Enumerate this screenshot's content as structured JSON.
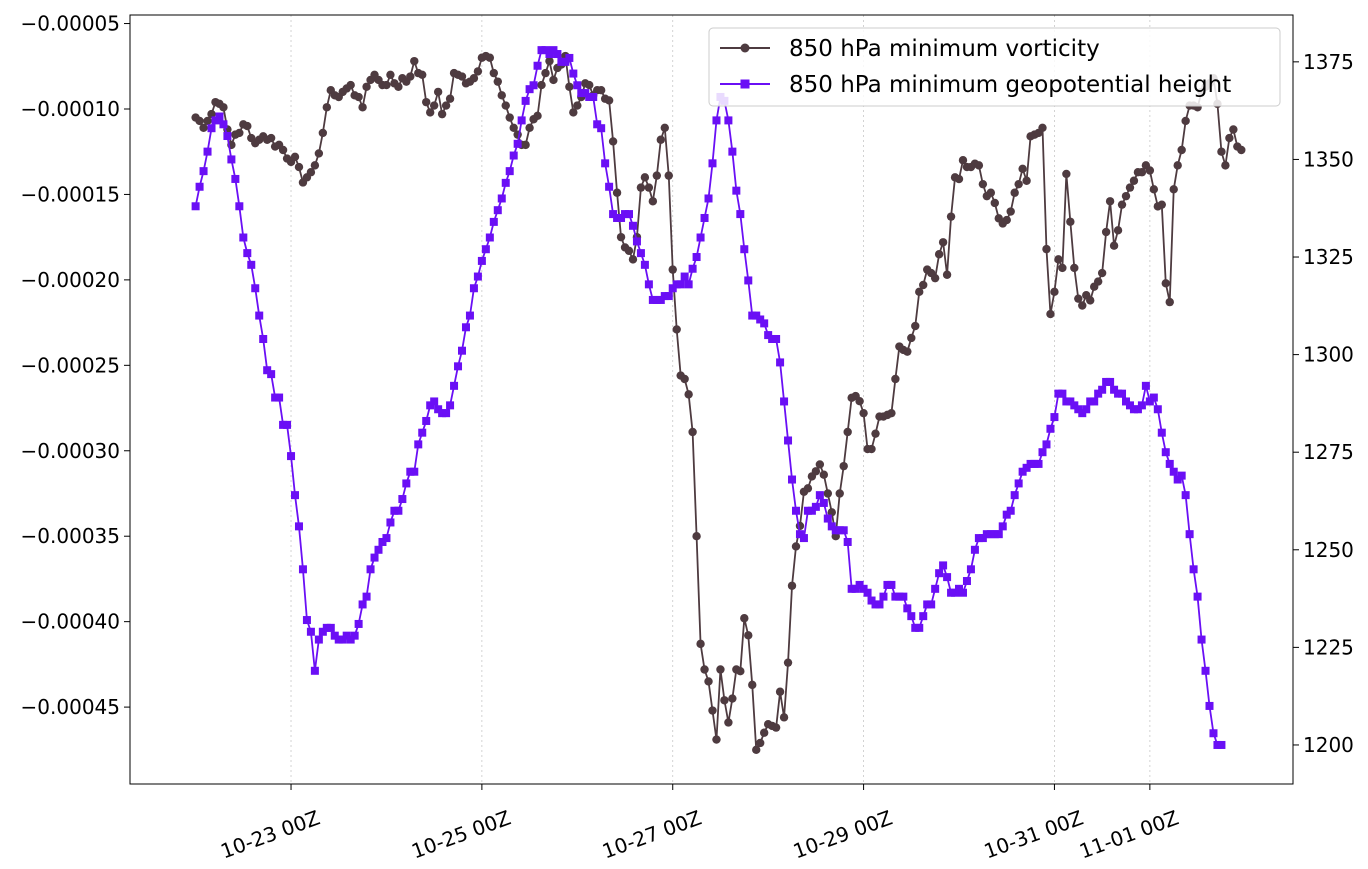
{
  "chart_data": {
    "type": "line",
    "x_unit": "UTC time",
    "x_ticks": [
      {
        "label": "10-23 00Z",
        "t": "2023-10-23T00:00Z"
      },
      {
        "label": "10-25 00Z",
        "t": "2023-10-25T00:00Z"
      },
      {
        "label": "10-27 00Z",
        "t": "2023-10-27T00:00Z"
      },
      {
        "label": "10-29 00Z",
        "t": "2023-10-29T00:00Z"
      },
      {
        "label": "10-31 00Z",
        "t": "2023-10-31T00:00Z"
      },
      {
        "label": "11-01 00Z",
        "t": "2023-11-01T00:00Z"
      }
    ],
    "xlim": [
      "2023-10-21T07:30Z",
      "2023-11-02T12:00Z"
    ],
    "grid": "vertical-dotted",
    "legend_position": "top-right",
    "y_left": {
      "lim": [
        -0.000495,
        -4.5e-05
      ],
      "ticks": [
        -5e-05,
        -0.0001,
        -0.00015,
        -0.0002,
        -0.00025,
        -0.0003,
        -0.00035,
        -0.0004,
        -0.00045
      ],
      "tick_labels": [
        "−0.00005",
        "−0.00010",
        "−0.00015",
        "−0.00020",
        "−0.00025",
        "−0.00030",
        "−0.00035",
        "−0.00040",
        "−0.00045"
      ]
    },
    "y_right": {
      "lim": [
        1190,
        1387
      ],
      "ticks": [
        1200,
        1225,
        1250,
        1275,
        1300,
        1325,
        1350,
        1375
      ],
      "tick_labels": [
        "1200",
        "1225",
        "1250",
        "1275",
        "1300",
        "1325",
        "1350",
        "1375"
      ]
    },
    "time_start": "2023-10-22T00:00Z",
    "time_step_hours": 1,
    "series": [
      {
        "name": "850 hPa minimum vorticity",
        "axis": "left",
        "color": "#4e3b40",
        "marker": "circle",
        "values": [
          -0.000105,
          -0.000107,
          -0.000111,
          -0.000107,
          -0.000103,
          -9.6e-05,
          -9.7e-05,
          -9.9e-05,
          -0.000112,
          -0.000121,
          -0.000115,
          -0.000114,
          -0.000109,
          -0.00011,
          -0.000117,
          -0.00012,
          -0.000118,
          -0.000116,
          -0.000118,
          -0.000117,
          -0.000122,
          -0.000121,
          -0.000124,
          -0.000129,
          -0.000131,
          -0.000128,
          -0.000134,
          -0.000143,
          -0.00014,
          -0.000137,
          -0.000133,
          -0.000126,
          -0.000114,
          -9.9e-05,
          -8.9e-05,
          -9.2e-05,
          -9.3e-05,
          -9e-05,
          -8.8e-05,
          -8.6e-05,
          -9.2e-05,
          -9.3e-05,
          -9.9e-05,
          -8.7e-05,
          -8.3e-05,
          -8e-05,
          -8.3e-05,
          -8.6e-05,
          -8.6e-05,
          -8e-05,
          -8.5e-05,
          -8.7e-05,
          -8.2e-05,
          -8.4e-05,
          -8.1e-05,
          -7.2e-05,
          -7.9e-05,
          -8e-05,
          -9.6e-05,
          -0.000102,
          -9.8e-05,
          -9e-05,
          -0.000103,
          -9.8e-05,
          -9.4e-05,
          -7.9e-05,
          -8e-05,
          -8.1e-05,
          -8.5e-05,
          -8.4e-05,
          -8.2e-05,
          -7.8e-05,
          -7e-05,
          -6.9e-05,
          -7e-05,
          -7.9e-05,
          -8.4e-05,
          -9.2e-05,
          -9.8e-05,
          -0.000105,
          -0.000111,
          -0.000115,
          -0.000121,
          -0.000121,
          -0.000111,
          -0.000106,
          -0.000104,
          -8.6e-05,
          -7.9e-05,
          -7.2e-05,
          -8.3e-05,
          -7.6e-05,
          -7.4e-05,
          -6.9e-05,
          -8.7e-05,
          -0.000102,
          -9.8e-05,
          -9.3e-05,
          -8.5e-05,
          -8.6e-05,
          -9.2e-05,
          -8.9e-05,
          -8.9e-05,
          -9.4e-05,
          -9.5e-05,
          -0.000119,
          -0.000149,
          -0.000175,
          -0.000181,
          -0.000183,
          -0.000188,
          -0.000175,
          -0.000146,
          -0.00014,
          -0.000146,
          -0.000154,
          -0.000139,
          -0.000118,
          -0.000111,
          -0.000139,
          -0.000194,
          -0.000229,
          -0.000256,
          -0.000258,
          -0.000267,
          -0.000289,
          -0.00035,
          -0.000413,
          -0.000428,
          -0.000435,
          -0.000452,
          -0.000469,
          -0.000428,
          -0.000446,
          -0.000459,
          -0.000445,
          -0.000428,
          -0.000429,
          -0.000398,
          -0.000408,
          -0.000437,
          -0.000475,
          -0.000471,
          -0.000465,
          -0.00046,
          -0.000461,
          -0.000462,
          -0.000441,
          -0.000456,
          -0.000424,
          -0.000379,
          -0.000356,
          -0.000344,
          -0.000324,
          -0.000322,
          -0.000315,
          -0.000312,
          -0.000308,
          -0.000314,
          -0.000325,
          -0.000336,
          -0.00035,
          -0.000325,
          -0.000309,
          -0.000289,
          -0.000269,
          -0.000268,
          -0.000271,
          -0.000278,
          -0.000299,
          -0.000299,
          -0.00029,
          -0.00028,
          -0.00028,
          -0.000279,
          -0.000278,
          -0.000258,
          -0.000239,
          -0.000241,
          -0.000242,
          -0.000234,
          -0.000227,
          -0.000207,
          -0.000203,
          -0.000194,
          -0.000196,
          -0.000199,
          -0.000185,
          -0.000178,
          -0.000197,
          -0.000163,
          -0.00014,
          -0.000141,
          -0.00013,
          -0.000134,
          -0.000134,
          -0.000132,
          -0.000133,
          -0.000144,
          -0.000151,
          -0.000149,
          -0.000155,
          -0.000164,
          -0.000167,
          -0.000165,
          -0.00016,
          -0.000149,
          -0.000144,
          -0.000135,
          -0.000142,
          -0.000116,
          -0.000115,
          -0.000114,
          -0.000111,
          -0.000182,
          -0.00022,
          -0.000207,
          -0.000188,
          -0.000193,
          -0.000138,
          -0.000166,
          -0.000193,
          -0.000211,
          -0.000215,
          -0.000209,
          -0.000212,
          -0.000204,
          -0.000201,
          -0.000196,
          -0.000172,
          -0.000154,
          -0.00018,
          -0.000171,
          -0.000156,
          -0.000151,
          -0.000146,
          -0.000142,
          -0.000137,
          -0.000137,
          -0.000133,
          -0.000136,
          -0.000147,
          -0.000157,
          -0.000156,
          -0.000202,
          -0.000213,
          -0.000147,
          -0.000133,
          -0.000124,
          -0.000107,
          -9.8e-05,
          -9.8e-05,
          -9.9e-05,
          -9e-05,
          -8.7e-05,
          -8.5e-05,
          -8.2e-05,
          -9.7e-05,
          -0.000125,
          -0.000133,
          -0.000117,
          -0.000112,
          -0.000122,
          -0.000124
        ]
      },
      {
        "name": "850 hPa minimum geopotential height",
        "axis": "right",
        "color": "#6a0ff5",
        "marker": "square",
        "values": [
          1338,
          1343,
          1347,
          1352,
          1358,
          1360,
          1361,
          1359,
          1356,
          1350,
          1345,
          1338,
          1330,
          1326,
          1323,
          1317,
          1310,
          1304,
          1296,
          1295,
          1289,
          1289,
          1282,
          1282,
          1274,
          1264,
          1256,
          1245,
          1232,
          1229,
          1219,
          1227,
          1229,
          1230,
          1230,
          1228,
          1227,
          1227,
          1228,
          1227,
          1228,
          1231,
          1236,
          1238,
          1245,
          1248,
          1250,
          1252,
          1253,
          1257,
          1260,
          1260,
          1263,
          1267,
          1270,
          1270,
          1277,
          1280,
          1283,
          1287,
          1288,
          1286,
          1285,
          1285,
          1287,
          1292,
          1297,
          1301,
          1307,
          1310,
          1317,
          1320,
          1324,
          1327,
          1330,
          1334,
          1337,
          1340,
          1344,
          1347,
          1351,
          1354,
          1360,
          1365,
          1368,
          1369,
          1374,
          1378,
          1378,
          1377,
          1378,
          1377,
          1375,
          1375,
          1376,
          1372,
          1369,
          1367,
          1367,
          1366,
          1366,
          1359,
          1358,
          1349,
          1343,
          1336,
          1335,
          1335,
          1336,
          1336,
          1333,
          1329,
          1326,
          1323,
          1318,
          1314,
          1314,
          1314,
          1315,
          1315,
          1317,
          1318,
          1318,
          1320,
          1318,
          1322,
          1325,
          1330,
          1335,
          1340,
          1349,
          1360,
          1366,
          1365,
          1360,
          1352,
          1342,
          1336,
          1327,
          1319,
          1310,
          1310,
          1309,
          1308,
          1305,
          1304,
          1304,
          1298,
          1288,
          1278,
          1268,
          1260,
          1254,
          1253,
          1260,
          1260,
          1261,
          1264,
          1262,
          1258,
          1256,
          1255,
          1255,
          1255,
          1252,
          1240,
          1240,
          1241,
          1240,
          1239,
          1237,
          1236,
          1236,
          1238,
          1241,
          1241,
          1238,
          1238,
          1238,
          1235,
          1233,
          1230,
          1230,
          1233,
          1236,
          1236,
          1240,
          1244,
          1246,
          1243,
          1239,
          1239,
          1240,
          1239,
          1242,
          1245,
          1250,
          1253,
          1253,
          1254,
          1254,
          1254,
          1254,
          1256,
          1259,
          1260,
          1264,
          1267,
          1270,
          1271,
          1272,
          1272,
          1272,
          1275,
          1277,
          1281,
          1284,
          1290,
          1290,
          1288,
          1288,
          1287,
          1286,
          1285,
          1286,
          1288,
          1288,
          1290,
          1291,
          1293,
          1293,
          1291,
          1290,
          1290,
          1288,
          1287,
          1286,
          1286,
          1287,
          1292,
          1288,
          1289,
          1286,
          1280,
          1275,
          1272,
          1270,
          1268,
          1269,
          1264,
          1254,
          1245,
          1238,
          1227,
          1219,
          1210,
          1203,
          1200,
          1200
        ]
      }
    ]
  }
}
